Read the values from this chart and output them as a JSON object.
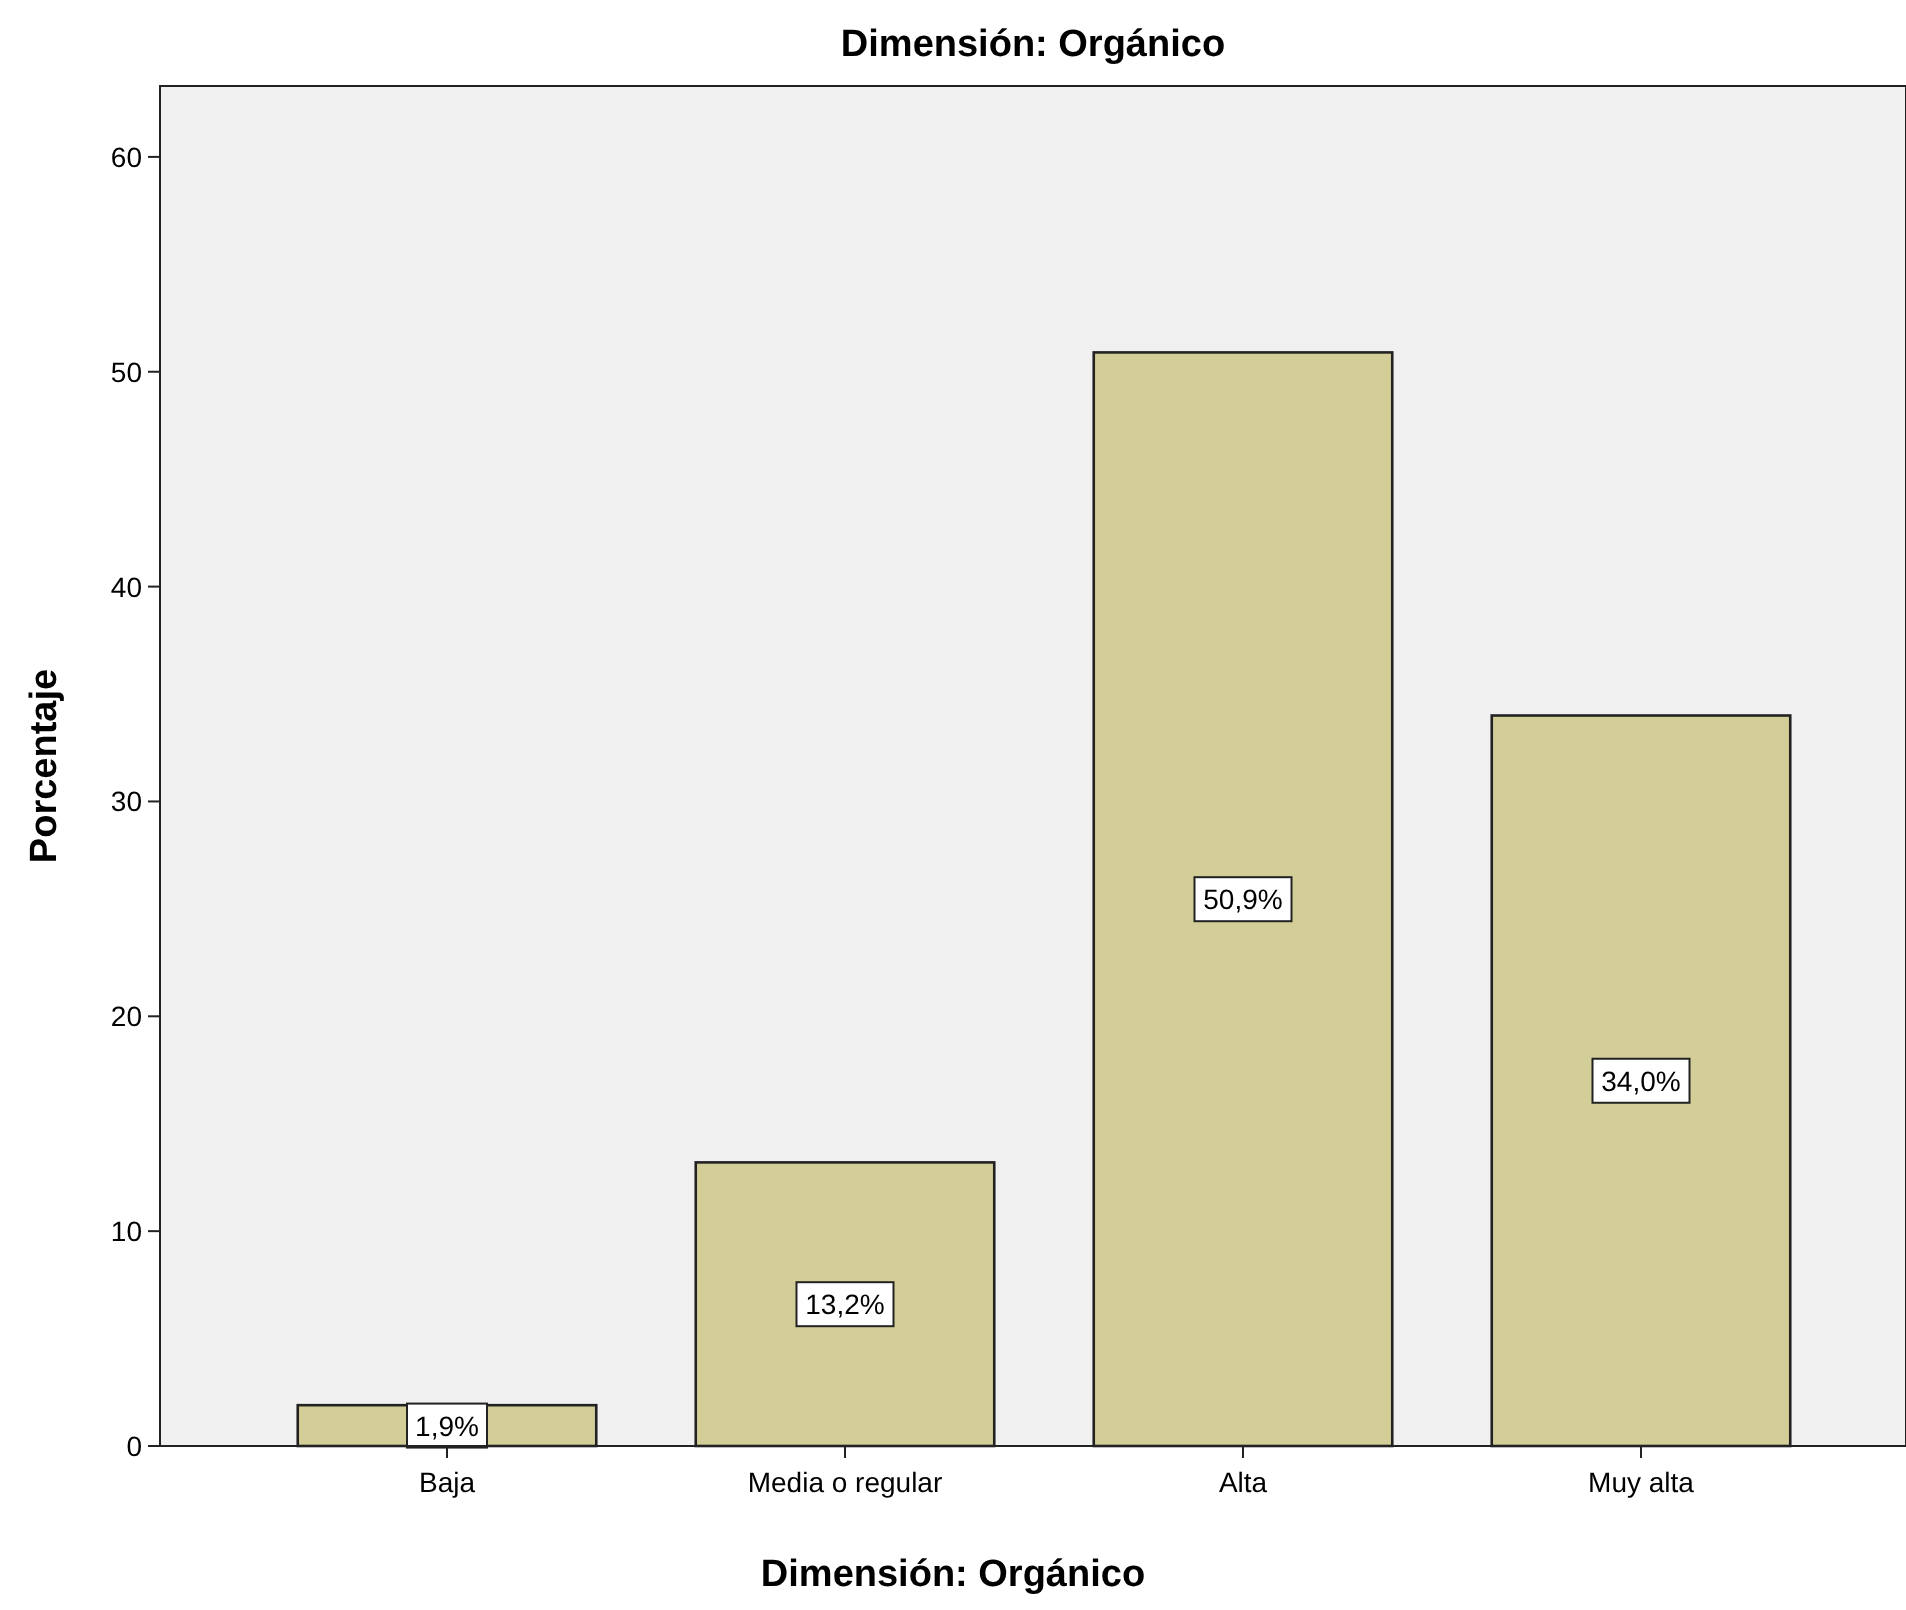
{
  "chart_data": {
    "type": "bar",
    "title": "Dimensión: Orgánico",
    "xlabel": "Dimensión: Orgánico",
    "ylabel": "Porcentaje",
    "categories": [
      "Baja",
      "Media o regular",
      "Alta",
      "Muy alta"
    ],
    "values": [
      1.9,
      13.2,
      50.9,
      34.0
    ],
    "value_labels": [
      "1,9%",
      "13,2%",
      "50,9%",
      "34,0%"
    ],
    "color": "#d3ce97",
    "ylim": [
      0,
      63.3
    ],
    "yticks": [
      0,
      10,
      20,
      30,
      40,
      50,
      60
    ],
    "grid": false
  }
}
